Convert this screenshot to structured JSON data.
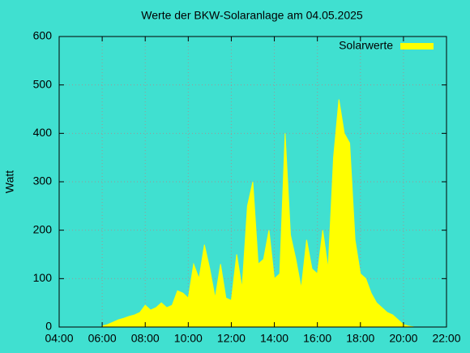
{
  "chart_data": {
    "type": "area",
    "title": "Werte der BKW-Solaranlage am 04.05.2025",
    "ylabel": "Watt",
    "x": [
      6,
      6.25,
      6.5,
      6.75,
      7,
      7.25,
      7.5,
      7.75,
      8,
      8.25,
      8.5,
      8.75,
      9,
      9.25,
      9.5,
      9.75,
      10,
      10.25,
      10.5,
      10.75,
      11,
      11.25,
      11.5,
      11.75,
      12,
      12.25,
      12.5,
      12.75,
      13,
      13.25,
      13.5,
      13.75,
      14,
      14.25,
      14.5,
      14.75,
      15,
      15.25,
      15.5,
      15.75,
      16,
      16.25,
      16.5,
      16.75,
      17,
      17.25,
      17.5,
      17.75,
      18,
      18.25,
      18.5,
      18.75,
      19,
      19.25,
      19.5,
      19.75,
      20,
      20.25,
      20.5
    ],
    "series": [
      {
        "name": "Solarwerte",
        "color": "#ffff00",
        "values": [
          2,
          5,
          10,
          15,
          18,
          22,
          25,
          30,
          45,
          35,
          40,
          50,
          40,
          45,
          75,
          70,
          60,
          130,
          100,
          170,
          120,
          60,
          130,
          60,
          55,
          150,
          80,
          250,
          300,
          130,
          140,
          200,
          100,
          110,
          400,
          190,
          140,
          80,
          180,
          120,
          110,
          200,
          120,
          350,
          470,
          400,
          380,
          180,
          110,
          100,
          70,
          50,
          40,
          30,
          25,
          15,
          5,
          2,
          0
        ]
      }
    ],
    "xlim": [
      4,
      22
    ],
    "xticks": [
      {
        "value": 4,
        "label": "04:00"
      },
      {
        "value": 6,
        "label": "06:00"
      },
      {
        "value": 8,
        "label": "08:00"
      },
      {
        "value": 10,
        "label": "10:00"
      },
      {
        "value": 12,
        "label": "12:00"
      },
      {
        "value": 14,
        "label": "14:00"
      },
      {
        "value": 16,
        "label": "16:00"
      },
      {
        "value": 18,
        "label": "18:00"
      },
      {
        "value": 20,
        "label": "20:00"
      },
      {
        "value": 22,
        "label": "22:00"
      }
    ],
    "ylim": [
      0,
      600
    ],
    "yticks": [
      0,
      100,
      200,
      300,
      400,
      500,
      600
    ],
    "grid": true,
    "legend": "top-right"
  }
}
